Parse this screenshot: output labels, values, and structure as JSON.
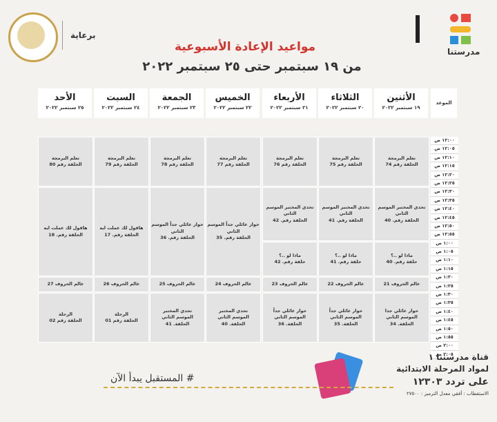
{
  "brand": {
    "name": "مدرستنا",
    "number": "1"
  },
  "sponsor_label": "برعاية",
  "header": {
    "title": "مواعيد الإعادة الأسبوعية",
    "subtitle": "من ١٩ سبتمبر حتى ٢٥ سبتمبر ٢٠٢٢"
  },
  "time_header": "الموعد",
  "days": [
    {
      "name": "الأثنين",
      "date": "١٩ سبتمبر ٢٠٢٢"
    },
    {
      "name": "الثلاثاء",
      "date": "٢٠ سبتمبر ٢٠٢٢"
    },
    {
      "name": "الأربعاء",
      "date": "٢١ سبتمبر ٢٠٢٢"
    },
    {
      "name": "الخميس",
      "date": "٢٢ سبتمبر ٢٠٢٢"
    },
    {
      "name": "الجمعة",
      "date": "٢٣ سبتمبر ٢٠٢٢"
    },
    {
      "name": "السبت",
      "date": "٢٤ سبتمبر ٢٠٢٢"
    },
    {
      "name": "الأحد",
      "date": "٢٥ سبتمبر ٢٠٢٢"
    }
  ],
  "times": [
    "١٢:٠٠ ص",
    "١٢:٠٥ ص",
    "١٢:١٠ ص",
    "١٢:١٥ ص",
    "١٢:٢٠ ص",
    "١٢:٢٥ ص",
    "١٢:٣٠ ص",
    "١٢:٣٥ ص",
    "١٢:٤٠ ص",
    "١٢:٤٥ ص",
    "١٢:٥٠ ص",
    "١٢:٥٥ ص",
    "١:٠٠ ص",
    "١:٠٥ ص",
    "١:١٠ ص",
    "١:١٥ ص",
    "١:٢٠ ص",
    "١:٢٥ ص",
    "١:٣٠ ص",
    "١:٣٥ ص",
    "١:٤٠ ص",
    "١:٤٥ ص",
    "١:٥٠ ص",
    "١:٥٥ ص",
    "٢:٠٠ ص",
    "٢:٠٥ ص"
  ],
  "cells": [
    {
      "t": "تعلم البرمجة\nالحلقة رقم 74"
    },
    {
      "t": "تعلم البرمجة\nالحلقة رقم 75"
    },
    {
      "t": "تعلم البرمجة\nالحلقة رقم 76"
    },
    {
      "t": "تعلم البرمجة\nالحلقة رقم 77"
    },
    {
      "t": "تعلم البرمجة\nالحلقة رقم 78"
    },
    {
      "t": "تعلم البرمجة\nالحلقة رقم 79"
    },
    {
      "t": "تعلم البرمجة\nالحلقة رقم 80"
    },
    {
      "t": "تحدي المختبر الموسم\nالثاني\nالحلقة رقم. 40"
    },
    {
      "t": "تحدي المختبر الموسم\nالثاني\nالحلقة رقم. 41"
    },
    {
      "t": "تحدي المختبر الموسم\nالثاني\nالحلقة رقم. 42"
    },
    {
      "t": "حوار عائلي جداً الموسم\nالثاني\nالحلقة رقم. 35"
    },
    {
      "t": "حوار عائلي جداً الموسم\nالثاني\nالحلقة رقم. 36"
    },
    {
      "t": "هاقول لك عملت ايه\nالحلقة رقم. 17"
    },
    {
      "t": "هاقول لك عملت ايه\nالحلقة رقم. 18"
    },
    {
      "t": "ماذا لو ..؟\nحلقة رقم. 40"
    },
    {
      "t": "ماذا لو ..؟\nحلقة رقم. 41"
    },
    {
      "t": "ماذا لو ..؟\nحلقة رقم. 42"
    },
    {
      "t": "عالم الحروف 21"
    },
    {
      "t": "عالم الحروف 22"
    },
    {
      "t": "عالم الحروف 23"
    },
    {
      "t": "عالم الحروف 24"
    },
    {
      "t": "عالم الحروف 25"
    },
    {
      "t": "عالم الحروف 26"
    },
    {
      "t": "عالم الحروف 27"
    },
    {
      "t": "حوار عائلي جدا\nالموسم الثاني\nالحلقة. 34"
    },
    {
      "t": "حوار عائلي جداً\nالموسم الثاني\nالحلقة. 35"
    },
    {
      "t": "حوار عائلي جداً\nالموسم الثاني\nالحلقة. 36"
    },
    {
      "t": "تحدي المختبر\nالموسم الثاني\nالحلقة. 40"
    },
    {
      "t": "تحدي المختبر\nالموسم الثاني\nالحلقة. 41"
    },
    {
      "t": "الرحلة\nالحلقة رقم 01"
    },
    {
      "t": "الرحلة\nالحلقة رقم 02"
    }
  ],
  "footer": {
    "slogan": "# المستقبل يبدأ الآن",
    "channel": "قناة مدرستنا ١",
    "line2": "لمواد المرحلة الابتدائية",
    "line3": "على تردد ١٢٣٠٣",
    "note": "الاستقطاب : أفقي معدل الترميز : ٢٧٥٠٠"
  },
  "colors": {
    "accent": "#d2342e",
    "cell": "#e3e3e3",
    "gold": "#d4a93a"
  }
}
